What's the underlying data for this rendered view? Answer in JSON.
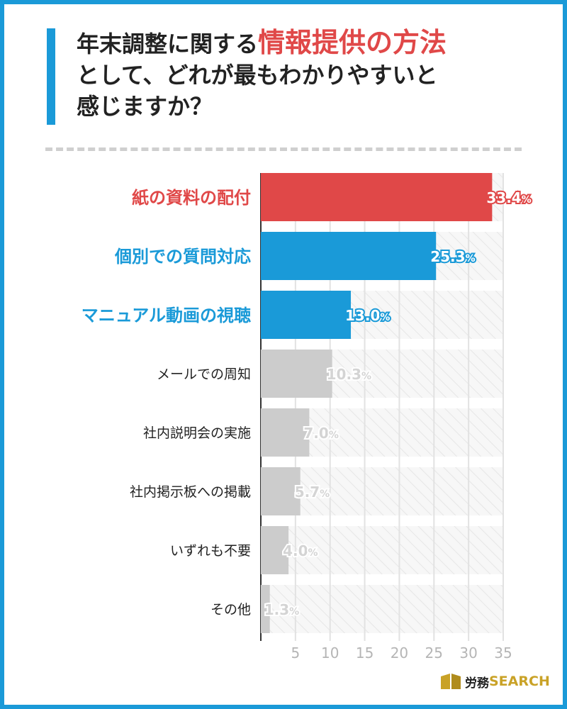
{
  "title": {
    "line1_prefix": "年末調整に関する",
    "line1_highlight": "情報提供の方法",
    "line2": "として、どれが最もわかりやすいと",
    "line3": "感じますか？"
  },
  "logo": {
    "jp": "労務",
    "en": "SEARCH"
  },
  "colors": {
    "highlight": "#e04848",
    "accent": "#1a9ad8",
    "muted": "#cccccc",
    "label_dark": "#222222"
  },
  "chart_data": {
    "type": "bar",
    "orientation": "horizontal",
    "categories": [
      "紙の資料の配付",
      "個別での質問対応",
      "マニュアル動画の視聴",
      "メールでの周知",
      "社内説明会の実施",
      "社内掲示板への掲載",
      "いずれも不要",
      "その他"
    ],
    "values": [
      33.4,
      25.3,
      13.0,
      10.3,
      7.0,
      5.7,
      4.0,
      1.3
    ],
    "value_labels": [
      "33.4%",
      "25.3%",
      "13.0%",
      "10.3%",
      "7.0%",
      "5.7%",
      "4.0%",
      "1.3%"
    ],
    "bar_styles": [
      "red",
      "blue",
      "blue",
      "gray",
      "gray",
      "gray",
      "gray",
      "gray"
    ],
    "label_styles": [
      "red",
      "blue",
      "blue",
      "dark",
      "dark",
      "dark",
      "dark",
      "dark"
    ],
    "xlim": [
      0,
      35
    ],
    "xticks": [
      5,
      10,
      15,
      20,
      25,
      30,
      35
    ],
    "grid": true,
    "unit": "%"
  }
}
